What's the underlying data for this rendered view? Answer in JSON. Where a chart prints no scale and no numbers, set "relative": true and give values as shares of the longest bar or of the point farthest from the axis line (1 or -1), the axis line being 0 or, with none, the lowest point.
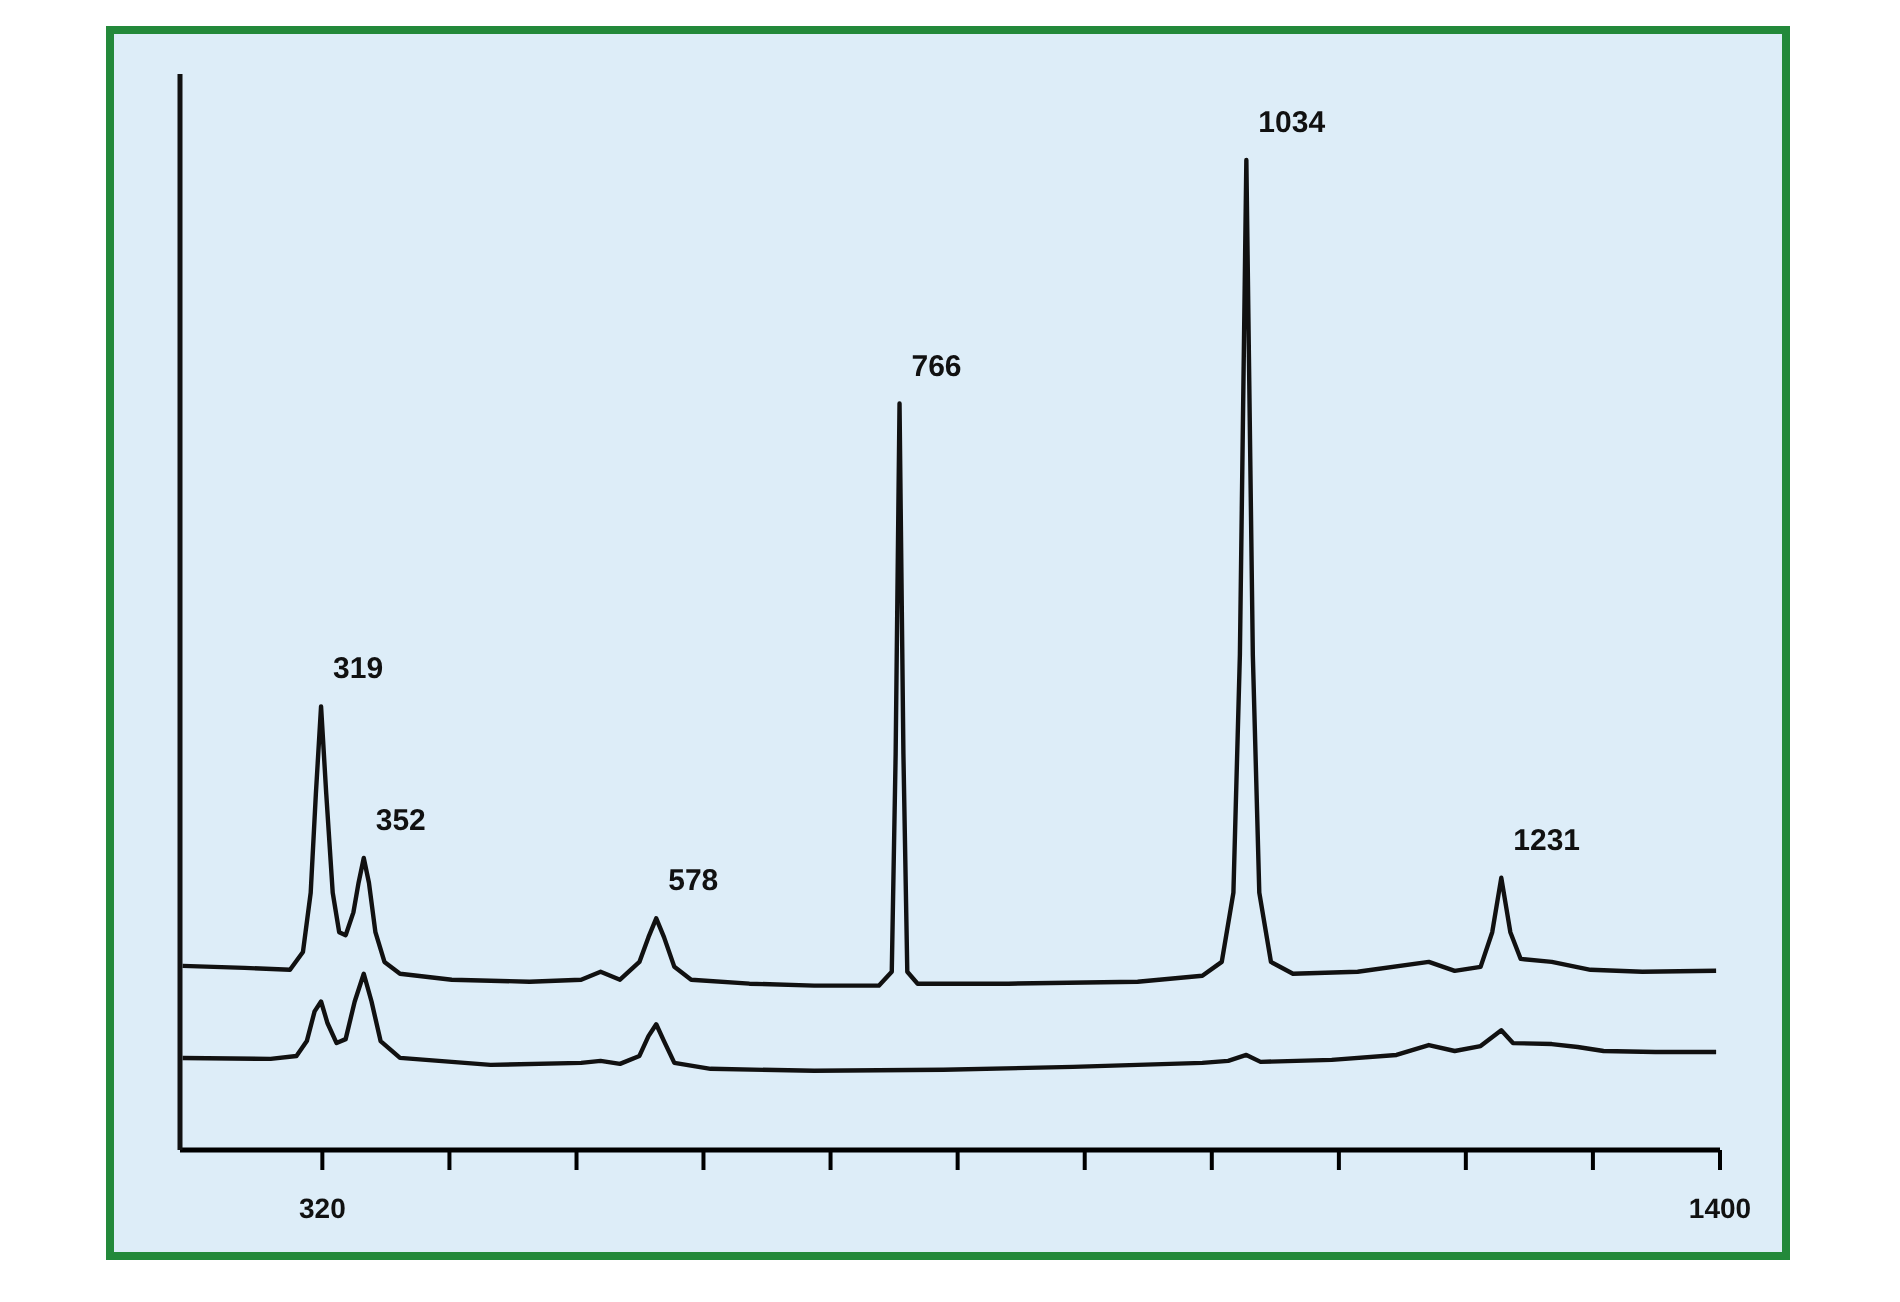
{
  "chart_data": {
    "type": "line",
    "relative": true,
    "line_style": "solid",
    "xlim": [
      210,
      1400
    ],
    "xticks": [
      320,
      {
        "value": 418.2,
        "label": null
      },
      {
        "value": 516.4,
        "label": null
      },
      {
        "value": 614.5,
        "label": null
      },
      {
        "value": 712.7,
        "label": null
      },
      {
        "value": 810.9,
        "label": null
      },
      {
        "value": 909.1,
        "label": null
      },
      {
        "value": 1007.3,
        "label": null
      },
      {
        "value": 1105.5,
        "label": null
      },
      {
        "value": 1203.6,
        "label": null
      },
      {
        "value": 1301.8,
        "label": null
      },
      1400
    ],
    "series": [
      {
        "color": "#111111",
        "x": [
          212,
          260,
          295,
          305,
          311,
          315,
          319,
          323,
          328,
          333,
          338,
          344,
          348,
          352,
          356,
          361,
          368,
          380,
          420,
          480,
          520,
          535,
          550,
          565,
          572,
          578,
          584,
          592,
          605,
          650,
          700,
          750,
          760,
          763,
          766,
          769,
          772,
          780,
          850,
          950,
          1000,
          1015,
          1024,
          1029,
          1034,
          1039,
          1044,
          1053,
          1070,
          1120,
          1175,
          1195,
          1215,
          1224,
          1231,
          1238,
          1246,
          1270,
          1300,
          1340,
          1397
        ],
        "values": [
          0.186,
          0.184,
          0.182,
          0.2,
          0.26,
          0.36,
          0.448,
          0.36,
          0.26,
          0.22,
          0.217,
          0.24,
          0.27,
          0.295,
          0.27,
          0.22,
          0.19,
          0.178,
          0.172,
          0.17,
          0.172,
          0.18,
          0.172,
          0.19,
          0.215,
          0.234,
          0.215,
          0.185,
          0.172,
          0.168,
          0.166,
          0.166,
          0.18,
          0.4,
          0.754,
          0.4,
          0.18,
          0.168,
          0.168,
          0.17,
          0.176,
          0.19,
          0.26,
          0.5,
          1.0,
          0.5,
          0.26,
          0.19,
          0.178,
          0.18,
          0.19,
          0.181,
          0.185,
          0.22,
          0.275,
          0.22,
          0.193,
          0.19,
          0.182,
          0.18,
          0.181
        ]
      },
      {
        "color": "#111111",
        "x": [
          212,
          280,
          300,
          308,
          314,
          319,
          324,
          331,
          338,
          345,
          352,
          358,
          365,
          380,
          450,
          520,
          535,
          550,
          565,
          572,
          578,
          584,
          592,
          620,
          700,
          800,
          900,
          1000,
          1020,
          1034,
          1045,
          1100,
          1150,
          1175,
          1195,
          1215,
          1231,
          1240,
          1270,
          1290,
          1310,
          1350,
          1397
        ],
        "values": [
          0.093,
          0.092,
          0.095,
          0.11,
          0.14,
          0.15,
          0.128,
          0.108,
          0.112,
          0.15,
          0.178,
          0.15,
          0.11,
          0.093,
          0.086,
          0.088,
          0.09,
          0.087,
          0.095,
          0.115,
          0.127,
          0.11,
          0.088,
          0.082,
          0.08,
          0.081,
          0.084,
          0.088,
          0.09,
          0.096,
          0.089,
          0.091,
          0.096,
          0.106,
          0.1,
          0.105,
          0.121,
          0.108,
          0.107,
          0.104,
          0.1,
          0.099,
          0.099
        ]
      }
    ],
    "annotations": [
      {
        "text": "319",
        "x": 319,
        "y": 0.448
      },
      {
        "text": "352",
        "x": 352,
        "y": 0.295
      },
      {
        "text": "578",
        "x": 578,
        "y": 0.234
      },
      {
        "text": "766",
        "x": 766,
        "y": 0.754
      },
      {
        "text": "1034",
        "x": 1034,
        "y": 1.0
      },
      {
        "text": "1231",
        "x": 1231,
        "y": 0.275
      }
    ]
  }
}
